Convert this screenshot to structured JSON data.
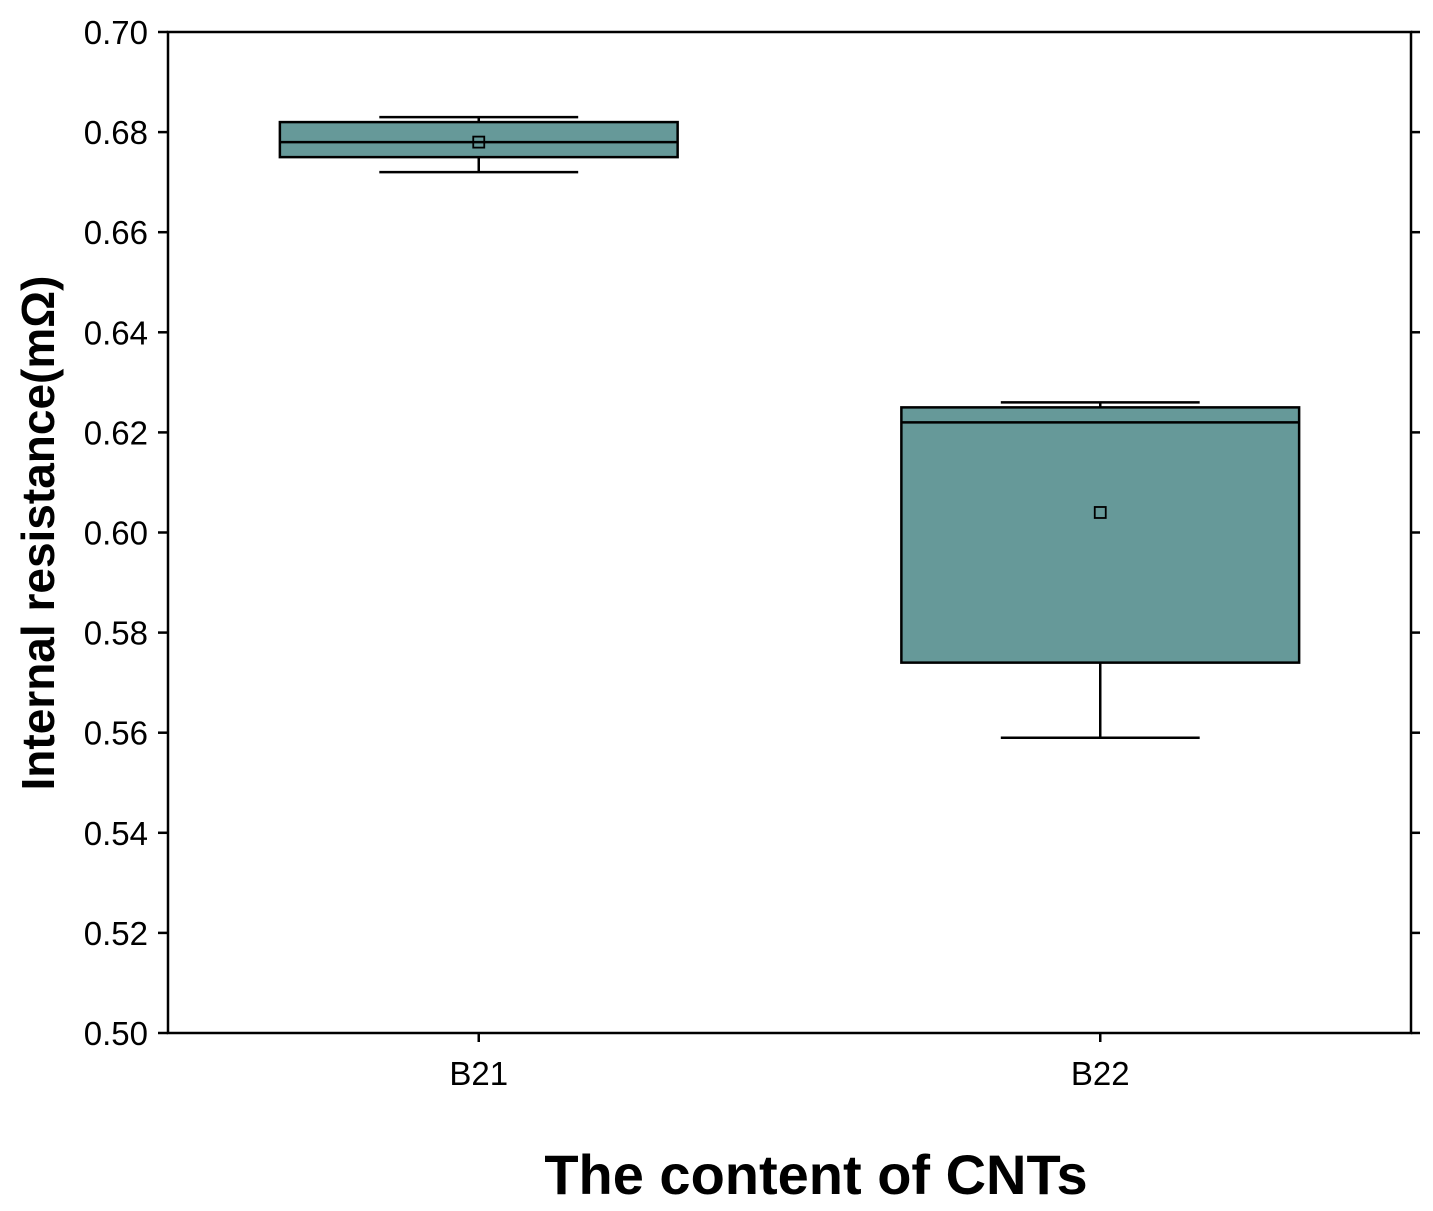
{
  "chart_data": {
    "type": "box",
    "title": "",
    "xlabel": "The content of CNTs",
    "ylabel": "Internal resistance(mΩ)",
    "ylim": [
      0.5,
      0.7
    ],
    "yticks": [
      "0.50",
      "0.52",
      "0.54",
      "0.56",
      "0.58",
      "0.60",
      "0.62",
      "0.64",
      "0.66",
      "0.68",
      "0.70"
    ],
    "categories": [
      "B21",
      "B22"
    ],
    "boxes": [
      {
        "category": "B21",
        "whisker_low": 0.672,
        "q1": 0.675,
        "median": 0.678,
        "q3": 0.682,
        "whisker_high": 0.683,
        "mean": 0.678
      },
      {
        "category": "B22",
        "whisker_low": 0.559,
        "q1": 0.574,
        "median": 0.622,
        "q3": 0.625,
        "whisker_high": 0.626,
        "mean": 0.604
      }
    ],
    "box_color": "#669999",
    "grid": false,
    "legend": "none"
  }
}
